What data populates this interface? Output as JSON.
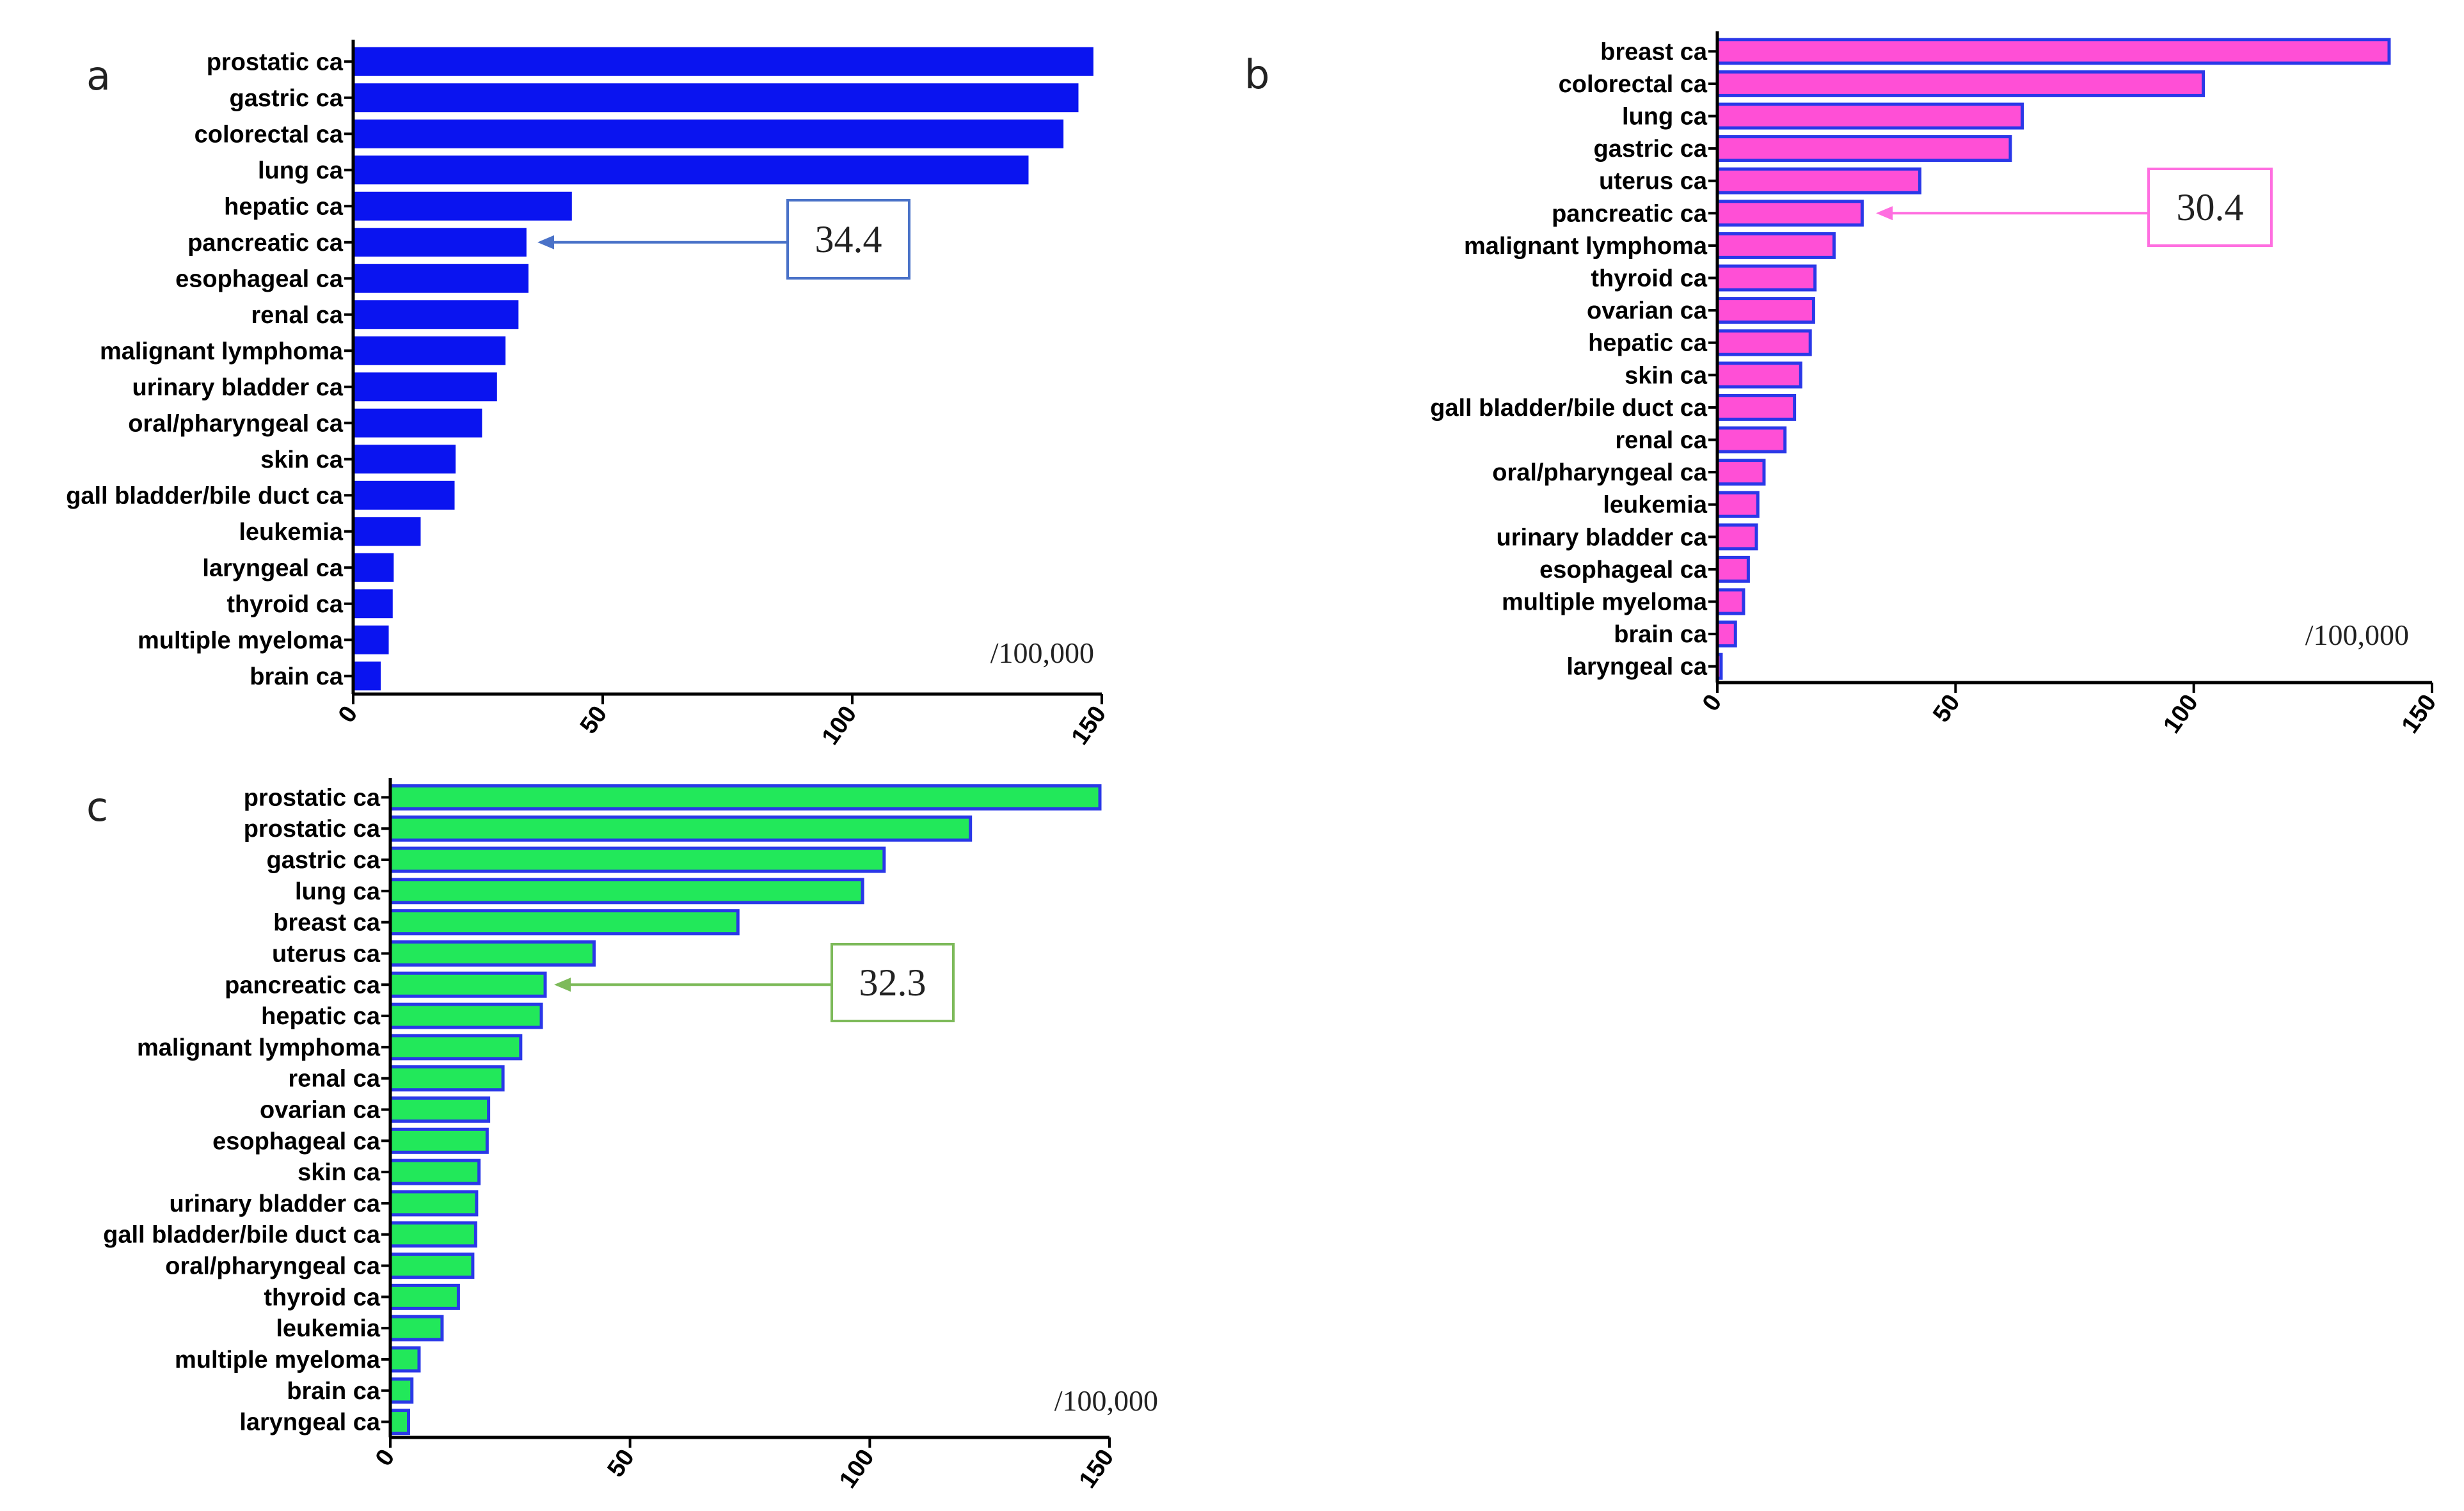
{
  "chart_data": [
    {
      "type": "bar",
      "orientation": "horizontal",
      "panel": "a",
      "unit": "/100,000",
      "xlim": [
        0,
        150
      ],
      "xticks": [
        "0",
        "50",
        "100",
        "150"
      ],
      "colors": {
        "fill": "#0a14f0",
        "stroke": "#0a14f0",
        "arrow": "#4a72c8"
      },
      "annotation": {
        "text": "34.4",
        "target": "pancreatic ca"
      },
      "categories": [
        "prostatic ca",
        "gastric ca",
        "colorectal ca",
        "lung ca",
        "hepatic ca",
        "pancreatic ca",
        "esophageal ca",
        "renal ca",
        "malignant lymphoma",
        "urinary bladder ca",
        "oral/pharyngeal ca",
        "skin ca",
        "gall bladder/bile duct ca",
        "leukemia",
        "laryngeal ca",
        "thyroid ca",
        "multiple myeloma",
        "brain ca"
      ],
      "values": [
        148,
        145,
        142,
        135,
        43.5,
        34.4,
        34.8,
        32.8,
        30.2,
        28.5,
        25.5,
        20.2,
        20.0,
        13.2,
        7.8,
        7.6,
        6.8,
        5.2
      ]
    },
    {
      "type": "bar",
      "orientation": "horizontal",
      "panel": "b",
      "unit": "/100,000",
      "xlim": [
        0,
        150
      ],
      "xticks": [
        "0",
        "50",
        "100",
        "150"
      ],
      "colors": {
        "fill": "#ff4fd6",
        "stroke": "#2a38e8",
        "arrow": "#ff6ee0"
      },
      "annotation": {
        "text": "30.4",
        "target": "pancreatic ca"
      },
      "categories": [
        "breast ca",
        "colorectal ca",
        "lung ca",
        "gastric ca",
        "uterus ca",
        "pancreatic ca",
        "malignant lymphoma",
        "thyroid ca",
        "ovarian ca",
        "hepatic ca",
        "skin ca",
        "gall bladder/bile duct ca",
        "renal ca",
        "oral/pharyngeal ca",
        "leukemia",
        "urinary bladder ca",
        "esophageal ca",
        "multiple myeloma",
        "brain ca",
        "laryngeal ca"
      ],
      "values": [
        141,
        102,
        64,
        61.5,
        42.5,
        30.4,
        24.5,
        20.5,
        20.2,
        19.5,
        17.5,
        16.2,
        14.2,
        9.8,
        8.5,
        8.2,
        6.5,
        5.5,
        3.8,
        0.8
      ]
    },
    {
      "type": "bar",
      "orientation": "horizontal",
      "panel": "c",
      "unit": "/100,000",
      "xlim": [
        0,
        150
      ],
      "xticks": [
        "0",
        "50",
        "100",
        "150"
      ],
      "colors": {
        "fill": "#22e85a",
        "stroke": "#2a38e8",
        "arrow": "#7dba5a"
      },
      "annotation": {
        "text": "32.3",
        "target": "pancreatic ca"
      },
      "categories": [
        "prostatic ca",
        "prostatic ca",
        "gastric ca",
        "lung ca",
        "breast ca",
        "uterus ca",
        "pancreatic ca",
        "hepatic ca",
        "malignant lymphoma",
        "renal ca",
        "ovarian ca",
        "esophageal ca",
        "skin ca",
        "urinary bladder ca",
        "gall bladder/bile duct ca",
        "oral/pharyngeal ca",
        "thyroid ca",
        "leukemia",
        "multiple myeloma",
        "brain ca",
        "laryngeal ca"
      ],
      "values": [
        148,
        121,
        103,
        98.5,
        72.5,
        42.5,
        32.3,
        31.5,
        27.2,
        23.5,
        20.5,
        20.2,
        18.5,
        18.0,
        17.8,
        17.2,
        14.2,
        10.8,
        6.0,
        4.5,
        3.8
      ]
    }
  ]
}
